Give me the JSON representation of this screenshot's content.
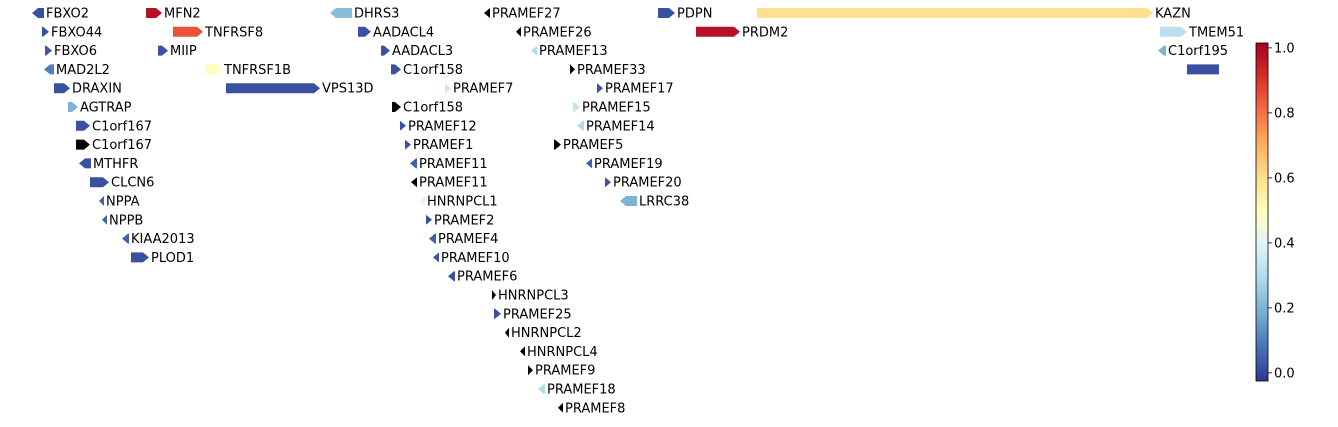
{
  "chart_data": {
    "type": "gene_track",
    "xlim": [
      0,
      1250
    ],
    "null_color": "#000000",
    "colormap": [
      "#313695",
      "#4575b4",
      "#74add1",
      "#abd9e9",
      "#e0f3f8",
      "#ffffbf",
      "#fee090",
      "#fdae61",
      "#f46d43",
      "#d73027",
      "#a50026"
    ],
    "clim": [
      -0.025,
      1.015
    ],
    "cticks": [
      {
        "value": 0,
        "label": "0.0"
      },
      {
        "value": 0.2,
        "label": "0.2"
      },
      {
        "value": 0.4,
        "label": "0.4"
      },
      {
        "value": 0.6,
        "label": "0.6"
      },
      {
        "value": 0.8,
        "label": "0.8"
      },
      {
        "value": 1,
        "label": "1.0"
      }
    ],
    "tracks": [
      [
        {
          "name": "FBXO2",
          "start": 32,
          "end": 44,
          "strand": -1,
          "value": 0.02
        },
        {
          "name": "MFN2",
          "start": 146,
          "end": 162,
          "strand": 1,
          "value": 0.98
        },
        {
          "name": "DHRS3",
          "start": 330,
          "end": 352,
          "strand": -1,
          "value": 0.22
        },
        {
          "name": "PRAMEF27",
          "start": 484,
          "end": 490,
          "strand": -1,
          "value": null
        },
        {
          "name": "PDPN",
          "start": 658,
          "end": 675,
          "strand": 1,
          "value": 0.02
        },
        {
          "name": "KAZN",
          "start": 757,
          "end": 1153,
          "strand": 1,
          "value": 0.6
        }
      ],
      [
        {
          "name": "FBXO44",
          "start": 42,
          "end": 49,
          "strand": 1,
          "value": 0.02
        },
        {
          "name": "TNFRSF8",
          "start": 173,
          "end": 203,
          "strand": 1,
          "value": 0.85
        },
        {
          "name": "AADACL4",
          "start": 358,
          "end": 371,
          "strand": 1,
          "value": 0.02
        },
        {
          "name": "PRAMEF26",
          "start": 516,
          "end": 521,
          "strand": -1,
          "value": null
        },
        {
          "name": "PRDM2",
          "start": 696,
          "end": 740,
          "strand": 1,
          "value": 0.98
        },
        {
          "name": "TMEM51",
          "start": 1160,
          "end": 1187,
          "strand": 1,
          "value": 0.32
        }
      ],
      [
        {
          "name": "FBXO6",
          "start": 45,
          "end": 52,
          "strand": 1,
          "value": 0.03
        },
        {
          "name": "MIIP",
          "start": 158,
          "end": 168,
          "strand": 1,
          "value": 0.02
        },
        {
          "name": "AADACL3",
          "start": 381,
          "end": 390,
          "strand": 1,
          "value": 0.02
        },
        {
          "name": "PRAMEF13",
          "start": 531,
          "end": 537,
          "strand": -1,
          "value": 0.3
        },
        {
          "name": "C1orf195",
          "start": 1158,
          "end": 1166,
          "strand": -1,
          "value": 0.2
        }
      ],
      [
        {
          "name": "MAD2L2",
          "start": 44,
          "end": 54,
          "strand": -1,
          "value": 0.1
        },
        {
          "name": "TNFRSF1B",
          "start": 205,
          "end": 222,
          "strand": 1,
          "value": 0.5
        },
        {
          "name": "C1orf158",
          "start": 391,
          "end": 401,
          "strand": 1,
          "value": 0.02
        },
        {
          "name": "PRAMEF33",
          "start": 570,
          "end": 575,
          "strand": 1,
          "value": null
        },
        {
          "name": null,
          "start": 1187,
          "end": 1219,
          "strand": 0,
          "value": 0.02
        }
      ],
      [
        {
          "name": "DRAXIN",
          "start": 54,
          "end": 70,
          "strand": 1,
          "value": 0.02
        },
        {
          "name": "VPS13D",
          "start": 226,
          "end": 320,
          "strand": 1,
          "value": 0.02
        },
        {
          "name": "PRAMEF7",
          "start": 445,
          "end": 451,
          "strand": 1,
          "value": 0.35
        },
        {
          "name": "PRAMEF17",
          "start": 597,
          "end": 603,
          "strand": 1,
          "value": 0.02
        }
      ],
      [
        {
          "name": "AGTRAP",
          "start": 68,
          "end": 78,
          "strand": 1,
          "value": 0.2
        },
        {
          "name": "C1orf158",
          "start": 392,
          "end": 401,
          "strand": 1,
          "value": null
        },
        {
          "name": "PRAMEF15",
          "start": 573,
          "end": 580,
          "strand": 1,
          "value": 0.33
        }
      ],
      [
        {
          "name": "C1orf167",
          "start": 76,
          "end": 90,
          "strand": 1,
          "value": 0.02
        },
        {
          "name": "PRAMEF12",
          "start": 400,
          "end": 406,
          "strand": 1,
          "value": 0.02
        },
        {
          "name": "PRAMEF14",
          "start": 577,
          "end": 584,
          "strand": -1,
          "value": 0.3
        }
      ],
      [
        {
          "name": "C1orf167",
          "start": 76,
          "end": 90,
          "strand": 1,
          "value": null
        },
        {
          "name": "PRAMEF1",
          "start": 405,
          "end": 411,
          "strand": 1,
          "value": 0.02
        },
        {
          "name": "PRAMEF5",
          "start": 554,
          "end": 561,
          "strand": 1,
          "value": null
        }
      ],
      [
        {
          "name": "MTHFR",
          "start": 79,
          "end": 91,
          "strand": -1,
          "value": 0.02
        },
        {
          "name": "PRAMEF11",
          "start": 410,
          "end": 417,
          "strand": -1,
          "value": 0.05
        },
        {
          "name": "PRAMEF19",
          "start": 586,
          "end": 592,
          "strand": -1,
          "value": 0.05
        }
      ],
      [
        {
          "name": "CLCN6",
          "start": 90,
          "end": 109,
          "strand": 1,
          "value": 0.02
        },
        {
          "name": "PRAMEF11",
          "start": 411,
          "end": 417,
          "strand": -1,
          "value": null
        },
        {
          "name": "PRAMEF20",
          "start": 605,
          "end": 611,
          "strand": 1,
          "value": 0.02
        }
      ],
      [
        {
          "name": "NPPA",
          "start": 99,
          "end": 104,
          "strand": -1,
          "value": 0.05
        },
        {
          "name": "HNRNPCL1",
          "start": 420,
          "end": 425,
          "strand": -1,
          "value": 0.4
        },
        {
          "name": "LRRC38",
          "start": 620,
          "end": 637,
          "strand": -1,
          "value": 0.2
        }
      ],
      [
        {
          "name": "NPPB",
          "start": 102,
          "end": 107,
          "strand": -1,
          "value": 0.05
        },
        {
          "name": "PRAMEF2",
          "start": 426,
          "end": 432,
          "strand": 1,
          "value": 0.02
        }
      ],
      [
        {
          "name": "KIAA2013",
          "start": 122,
          "end": 129,
          "strand": -1,
          "value": 0.05
        },
        {
          "name": "PRAMEF4",
          "start": 429,
          "end": 436,
          "strand": -1,
          "value": 0.05
        }
      ],
      [
        {
          "name": "PLOD1",
          "start": 131,
          "end": 149,
          "strand": 1,
          "value": 0.02
        },
        {
          "name": "PRAMEF10",
          "start": 433,
          "end": 439,
          "strand": -1,
          "value": 0.02
        }
      ],
      [
        {
          "name": "PRAMEF6",
          "start": 448,
          "end": 455,
          "strand": -1,
          "value": 0.02
        }
      ],
      [
        {
          "name": "HNRNPCL3",
          "start": 492,
          "end": 496,
          "strand": 1,
          "value": null
        }
      ],
      [
        {
          "name": "PRAMEF25",
          "start": 494,
          "end": 501,
          "strand": 1,
          "value": 0.02
        }
      ],
      [
        {
          "name": "HNRNPCL2",
          "start": 505,
          "end": 509,
          "strand": -1,
          "value": null
        }
      ],
      [
        {
          "name": "HNRNPCL4",
          "start": 520,
          "end": 525,
          "strand": -1,
          "value": null
        }
      ],
      [
        {
          "name": "PRAMEF9",
          "start": 528,
          "end": 533,
          "strand": 1,
          "value": null
        }
      ],
      [
        {
          "name": "PRAMEF18",
          "start": 538,
          "end": 545,
          "strand": -1,
          "value": 0.3
        }
      ],
      [
        {
          "name": "PRAMEF8",
          "start": 558,
          "end": 563,
          "strand": -1,
          "value": null
        }
      ]
    ]
  }
}
